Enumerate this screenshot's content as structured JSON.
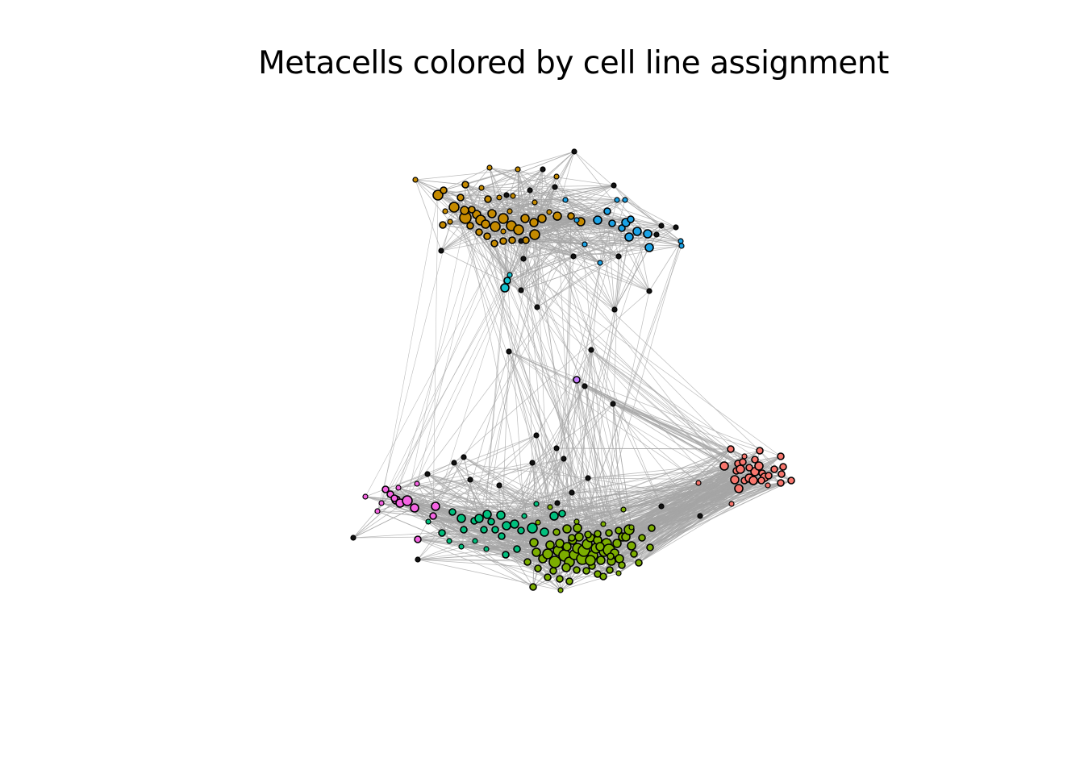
{
  "title": "Metacells colored by cell line assignment",
  "colors": {
    "edge": "#a6a6a6",
    "node_stroke": "#000000",
    "orange": "#c58a00",
    "blue": "#1aa2e6",
    "cyan": "#14c2cf",
    "purple": "#c77cff",
    "red": "#f8766d",
    "magenta": "#f564e3",
    "teal": "#00bf7d",
    "olive": "#7cae00",
    "black": "#111111"
  }
}
